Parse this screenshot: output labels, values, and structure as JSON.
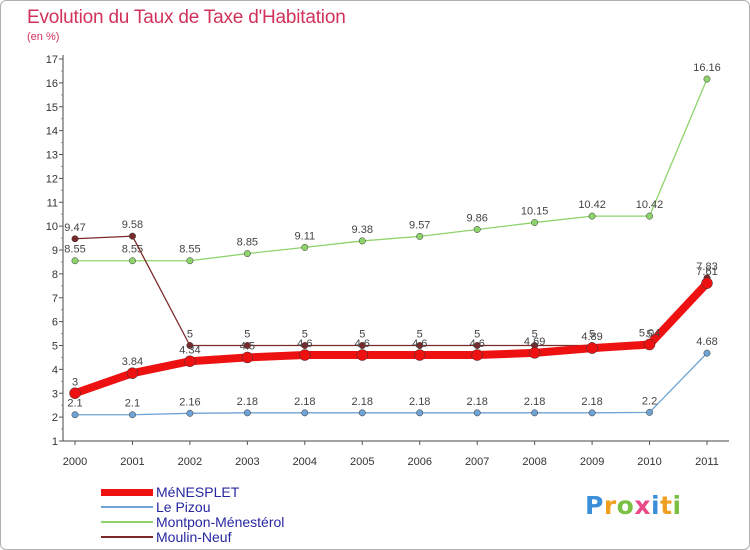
{
  "title": "Evolution du Taux de Taxe d'Habitation",
  "subtitle": "(en %)",
  "logo": {
    "text": "Proxiti",
    "letters": [
      "P",
      "r",
      "o",
      "x",
      "i",
      "t",
      "i"
    ]
  },
  "chart_data": {
    "type": "line",
    "title": "Evolution du Taux de Taxe d'Habitation",
    "ylabel": "(en %)",
    "xlabel": "",
    "grid": false,
    "legend_position": "bottom-left",
    "ylim": [
      1,
      17
    ],
    "yticks": [
      "1",
      "2",
      "3",
      "4",
      "5",
      "6",
      "7",
      "8",
      "9",
      "10",
      "11",
      "12",
      "13",
      "14",
      "15",
      "16",
      "17"
    ],
    "categories": [
      "2000",
      "2001",
      "2002",
      "2003",
      "2004",
      "2005",
      "2006",
      "2007",
      "2008",
      "2009",
      "2010",
      "2011"
    ],
    "series": [
      {
        "name": "Montpon-Ménestérol",
        "color": "#8ed36b",
        "values": [
          8.55,
          8.55,
          8.55,
          8.85,
          9.11,
          9.38,
          9.57,
          9.86,
          10.15,
          10.42,
          10.42,
          16.16
        ],
        "labels": [
          "8.55",
          "8.55",
          "8.55",
          "8.85",
          "9.11",
          "9.38",
          "9.57",
          "9.86",
          "10.15",
          "10.42",
          "10.42",
          "16.16"
        ]
      },
      {
        "name": "Moulin-Neuf",
        "color": "#7a2a2a",
        "values": [
          9.47,
          9.58,
          5,
          5,
          5,
          5,
          5,
          5,
          5,
          5,
          5,
          7.83
        ],
        "labels": [
          "9.47",
          "9.58",
          "5",
          "5",
          "5",
          "5",
          "5",
          "5",
          "5",
          "5",
          "5",
          "7.83"
        ]
      },
      {
        "name": "Le Pizou",
        "color": "#6fa3d3",
        "values": [
          2.1,
          2.1,
          2.16,
          2.18,
          2.18,
          2.18,
          2.18,
          2.18,
          2.18,
          2.18,
          2.2,
          4.68
        ],
        "labels": [
          "2.1",
          "2.1",
          "2.16",
          "2.18",
          "2.18",
          "2.18",
          "2.18",
          "2.18",
          "2.18",
          "2.18",
          "2.2",
          "4.68"
        ]
      },
      {
        "name": "MéNESPLET",
        "color": "#ee1111",
        "values": [
          3,
          3.84,
          4.34,
          4.5,
          4.6,
          4.6,
          4.6,
          4.6,
          4.69,
          4.89,
          5.04,
          7.61
        ],
        "labels": [
          "3",
          "3.84",
          "4.34",
          "4.5",
          "4.6",
          "4.6",
          "4.6",
          "4.6",
          "4.69",
          "4.89",
          "5.04",
          "7.61"
        ]
      }
    ],
    "legend": [
      {
        "name": "MéNESPLET",
        "color": "#ee1111"
      },
      {
        "name": "Le Pizou",
        "color": "#6fa3d3"
      },
      {
        "name": "Montpon-Ménestérol",
        "color": "#8ed36b"
      },
      {
        "name": "Moulin-Neuf",
        "color": "#7a2a2a"
      }
    ]
  }
}
